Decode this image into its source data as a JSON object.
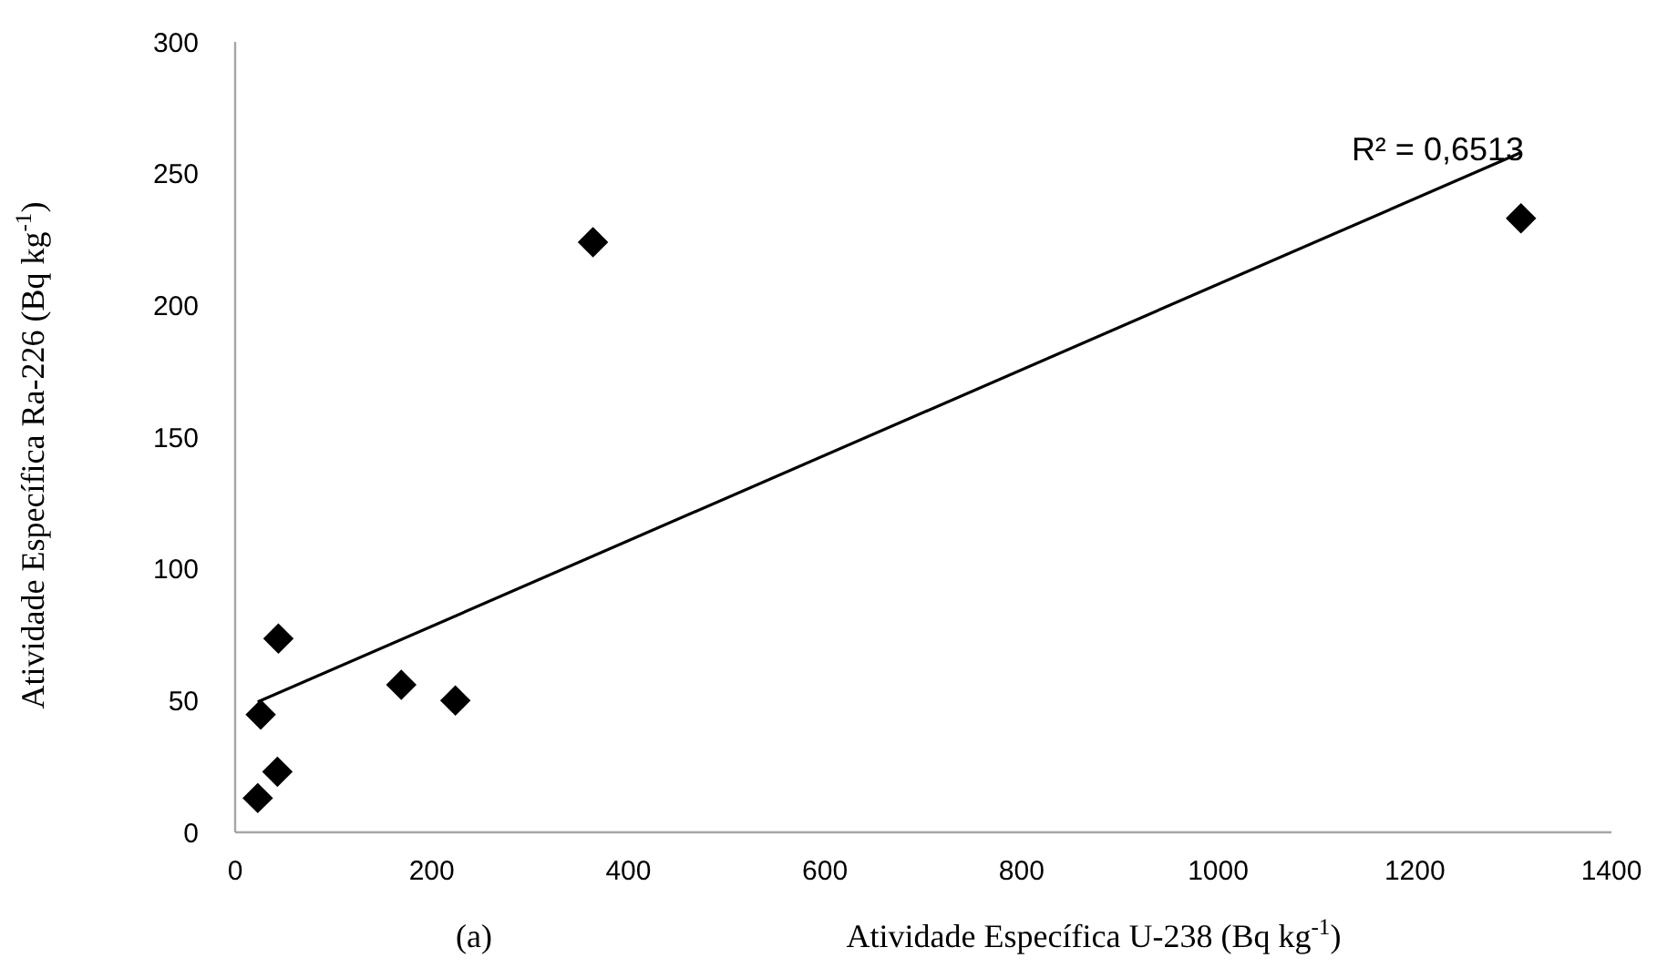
{
  "chart_data": {
    "type": "scatter",
    "xlabel": "Atividade Específica U-238 (Bq kg$^{-1}$)",
    "ylabel": "Atividade Específica Ra-226 (Bq kg$^{-1}$)",
    "xlim": [
      0,
      1400
    ],
    "xticks": [
      0,
      200,
      400,
      600,
      800,
      1000,
      1200,
      1400
    ],
    "ylim": [
      0,
      300
    ],
    "yticks": [
      0,
      50,
      100,
      150,
      200,
      250,
      300
    ],
    "grid": false,
    "marker": "diamond",
    "series": [
      {
        "color": "#000000",
        "x": [
          23,
          26,
          43,
          44,
          169,
          224,
          364,
          1308
        ],
        "values": [
          13,
          44.7,
          23,
          73.5,
          56,
          50,
          224,
          233
        ]
      },
      {
        "type": "line",
        "color": "#000000",
        "marker": "none",
        "x": [
          23,
          1308
        ],
        "values": [
          49.5,
          258
        ]
      }
    ],
    "annotations": [
      "R² = 0,6513",
      "(a)"
    ]
  }
}
